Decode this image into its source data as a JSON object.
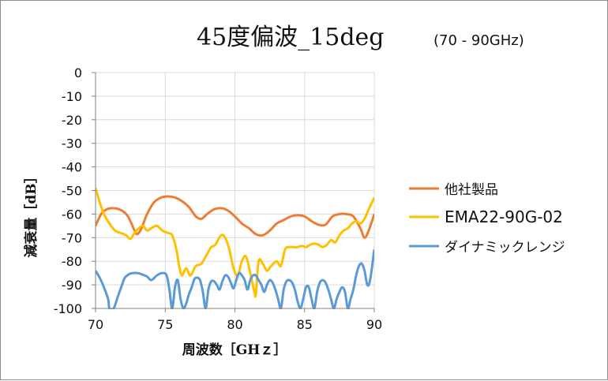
{
  "chart_data": {
    "type": "line",
    "title": "45度偏波_15deg",
    "subtitle": "(70 - 90GHz)",
    "xlabel": "周波数［GHｚ］",
    "ylabel": "減衰量［dB］",
    "xlim": [
      70,
      90
    ],
    "ylim": [
      -100,
      0
    ],
    "x_ticks": [
      "70",
      "75",
      "80",
      "85",
      "90"
    ],
    "y_ticks": [
      "0",
      "-10",
      "-20",
      "-30",
      "-40",
      "-50",
      "-60",
      "-70",
      "-80",
      "-90",
      "-100"
    ],
    "grid": true,
    "legend_position": "right",
    "series": [
      {
        "name": "他社製品",
        "color": "#ED7D31",
        "x": [
          70,
          70.4,
          70.8,
          71.2,
          71.7,
          72.2,
          72.5,
          72.8,
          73.0,
          73.3,
          73.7,
          74.2,
          74.7,
          75.2,
          75.7,
          76.2,
          76.7,
          77.2,
          77.6,
          78.0,
          78.5,
          79.0,
          79.5,
          80.0,
          80.5,
          81.0,
          81.5,
          82.0,
          82.5,
          83.0,
          83.5,
          84.0,
          84.5,
          85.0,
          85.5,
          86.0,
          86.5,
          87.0,
          87.5,
          88.0,
          88.5,
          89.0,
          89.3,
          89.6,
          90.0
        ],
        "y": [
          -65,
          -60,
          -58,
          -57.5,
          -58,
          -60,
          -63,
          -67,
          -68.5,
          -66,
          -60,
          -55,
          -53,
          -52.5,
          -53,
          -54.5,
          -57,
          -61,
          -62,
          -60,
          -58,
          -57.5,
          -58.5,
          -61,
          -64,
          -66,
          -68.5,
          -69,
          -67,
          -64,
          -62.5,
          -61,
          -60.5,
          -61,
          -63,
          -64.5,
          -64.5,
          -61,
          -60,
          -60,
          -61,
          -66,
          -70,
          -67,
          -60
        ]
      },
      {
        "name": "EMA22-90G-02",
        "color": "#FFC000",
        "x": [
          70,
          70.3,
          70.6,
          71.0,
          71.4,
          71.8,
          72.2,
          72.5,
          72.8,
          73.1,
          73.4,
          73.7,
          74.0,
          74.4,
          74.8,
          75.2,
          75.5,
          75.8,
          76.0,
          76.2,
          76.5,
          76.8,
          77.2,
          77.6,
          78.0,
          78.3,
          78.6,
          79.0,
          79.3,
          79.6,
          79.9,
          80.2,
          80.5,
          80.8,
          81.1,
          81.4,
          81.5,
          81.7,
          82.0,
          82.3,
          82.6,
          83.0,
          83.3,
          83.6,
          83.9,
          84.2,
          84.5,
          84.8,
          85.1,
          85.4,
          85.7,
          86.0,
          86.3,
          86.6,
          86.9,
          87.2,
          87.5,
          87.8,
          88.1,
          88.4,
          88.7,
          89.0,
          89.3,
          89.6,
          90.0
        ],
        "y": [
          -49,
          -55,
          -60,
          -64,
          -67,
          -68,
          -69,
          -70.5,
          -68,
          -66,
          -65,
          -67,
          -66,
          -65,
          -67,
          -68,
          -69,
          -75,
          -82,
          -86,
          -83,
          -86,
          -82,
          -81,
          -77,
          -74,
          -73,
          -69,
          -70,
          -75,
          -83,
          -86,
          -80,
          -78,
          -85,
          -93,
          -94,
          -80,
          -81,
          -84,
          -82,
          -80,
          -82,
          -75,
          -74,
          -74,
          -74,
          -73.5,
          -74,
          -73,
          -72.5,
          -73,
          -74,
          -73,
          -71,
          -72,
          -69,
          -67,
          -66,
          -64,
          -63,
          -64,
          -62,
          -58,
          -53
        ]
      },
      {
        "name": "ダイナミックレンジ",
        "color": "#5B9BD5",
        "x": [
          70,
          70.3,
          70.6,
          70.9,
          71.0,
          71.3,
          71.6,
          71.9,
          72.1,
          72.4,
          72.7,
          73.0,
          73.3,
          73.7,
          74.0,
          74.4,
          74.8,
          75.1,
          75.3,
          75.5,
          75.7,
          75.9,
          76.1,
          76.3,
          76.5,
          76.7,
          76.9,
          77.1,
          77.3,
          77.5,
          77.7,
          77.9,
          78.1,
          78.3,
          78.5,
          78.7,
          78.9,
          79.1,
          79.3,
          79.5,
          79.7,
          79.9,
          80.1,
          80.3,
          80.5,
          80.7,
          80.9,
          81.1,
          81.3,
          81.5,
          81.7,
          81.9,
          82.1,
          82.3,
          82.5,
          82.7,
          82.9,
          83.1,
          83.3,
          83.5,
          83.7,
          83.9,
          84.1,
          84.3,
          84.5,
          84.7,
          84.9,
          85.1,
          85.3,
          85.5,
          85.7,
          85.9,
          86.1,
          86.3,
          86.5,
          86.7,
          86.9,
          87.1,
          87.3,
          87.5,
          87.7,
          87.9,
          88.1,
          88.3,
          88.5,
          88.7,
          88.9,
          89.1,
          89.3,
          89.5,
          89.7,
          90.0
        ],
        "y": [
          -84,
          -87,
          -91,
          -96,
          -100,
          -100,
          -95,
          -90,
          -87,
          -85.5,
          -85,
          -85,
          -85.5,
          -86.5,
          -88,
          -86,
          -85,
          -86,
          -92,
          -100,
          -91,
          -88,
          -96,
          -100,
          -98,
          -94,
          -91,
          -87.5,
          -87,
          -88,
          -93,
          -100,
          -92,
          -88.5,
          -88.5,
          -90,
          -92,
          -88.5,
          -86,
          -86.5,
          -89,
          -91.5,
          -88,
          -85,
          -86,
          -88,
          -92,
          -88,
          -86,
          -86,
          -88,
          -90,
          -93,
          -90,
          -88,
          -89,
          -92,
          -96,
          -100,
          -92,
          -88.5,
          -88,
          -89,
          -92,
          -97,
          -100,
          -96,
          -91,
          -91,
          -96,
          -100,
          -93,
          -89,
          -88,
          -89,
          -92,
          -96,
          -100,
          -96,
          -93,
          -91,
          -93,
          -100,
          -96,
          -92,
          -86,
          -82,
          -81,
          -84,
          -90,
          -88,
          -75
        ]
      }
    ]
  }
}
